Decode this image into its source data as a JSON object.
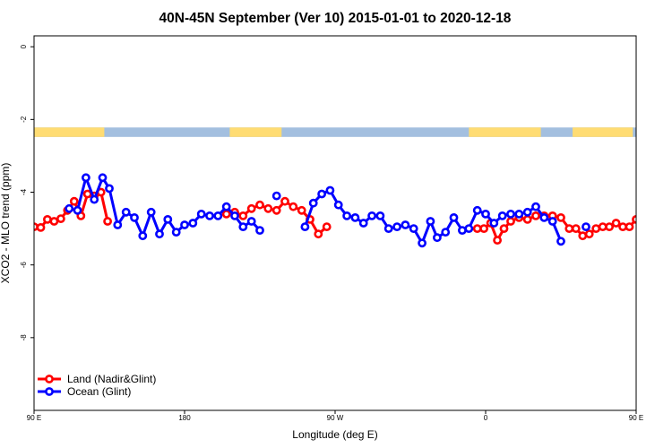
{
  "chart_data": {
    "type": "line",
    "title": "40N-45N September (Ver 10)   2015-01-01 to 2020-12-18",
    "xlabel": "Longitude (deg E)",
    "ylabel": "XCO2 - MLO trend (ppm)",
    "xlim": [
      90,
      450
    ],
    "ylim": [
      -10,
      0.3
    ],
    "x_ticks": [
      {
        "value": 90,
        "label": "90 E"
      },
      {
        "value": 180,
        "label": "180"
      },
      {
        "value": 270,
        "label": "90 W"
      },
      {
        "value": 360,
        "label": "0"
      },
      {
        "value": 450,
        "label": "90 E"
      },
      {
        "value": 540,
        "label": "180"
      }
    ],
    "y_ticks": [
      {
        "value": 0,
        "label": "0"
      },
      {
        "value": -2,
        "label": "-2"
      },
      {
        "value": -4,
        "label": "-4"
      },
      {
        "value": -6,
        "label": "-6"
      },
      {
        "value": -8,
        "label": "-8"
      }
    ],
    "grid": false,
    "legend_position": "bottom-left",
    "surface_strip": {
      "y_range": [
        -2.22,
        -2.48
      ],
      "land_color": "#ffdc73",
      "ocean_color": "#a3bfdf",
      "land_ranges": [
        [
          90,
          132
        ],
        [
          207,
          238
        ],
        [
          350,
          393
        ],
        [
          412,
          448
        ],
        [
          450,
          492
        ]
      ]
    },
    "series": [
      {
        "name": "Land (Nadir&Glint)",
        "color": "#ff0000",
        "points": [
          [
            90,
            -4.95
          ],
          [
            94,
            -4.97
          ],
          [
            98,
            -4.75
          ],
          [
            102,
            -4.8
          ],
          [
            106,
            -4.73
          ],
          [
            110,
            -4.5
          ],
          [
            114,
            -4.25
          ],
          [
            118,
            -4.65
          ],
          [
            122,
            -4.05
          ],
          [
            126,
            -4.1
          ],
          [
            130,
            -4.0
          ],
          [
            134,
            -4.8
          ],
          null,
          [
            205,
            -4.6
          ],
          [
            210,
            -4.55
          ],
          [
            215,
            -4.65
          ],
          [
            220,
            -4.45
          ],
          [
            225,
            -4.35
          ],
          [
            230,
            -4.45
          ],
          [
            235,
            -4.5
          ],
          [
            240,
            -4.25
          ],
          [
            245,
            -4.4
          ],
          [
            250,
            -4.5
          ],
          [
            255,
            -4.75
          ],
          [
            260,
            -5.15
          ],
          [
            265,
            -4.95
          ],
          null,
          [
            355,
            -5.0
          ],
          [
            359,
            -5.0
          ],
          [
            363,
            -4.85
          ],
          [
            367,
            -5.32
          ],
          [
            371,
            -5.0
          ],
          [
            375,
            -4.8
          ],
          [
            380,
            -4.7
          ],
          [
            385,
            -4.75
          ],
          [
            390,
            -4.65
          ],
          [
            395,
            -4.65
          ],
          [
            400,
            -4.65
          ],
          [
            405,
            -4.7
          ],
          [
            410,
            -5.0
          ],
          [
            414,
            -5.0
          ],
          [
            418,
            -5.2
          ],
          [
            422,
            -5.15
          ],
          [
            426,
            -5.0
          ],
          [
            430,
            -4.95
          ],
          [
            434,
            -4.95
          ],
          [
            438,
            -4.85
          ],
          [
            442,
            -4.95
          ],
          [
            446,
            -4.95
          ],
          [
            450,
            -4.75
          ],
          [
            454,
            -4.8
          ],
          [
            458,
            -4.7
          ],
          [
            462,
            -4.5
          ],
          [
            466,
            -4.25
          ],
          [
            470,
            -4.65
          ],
          [
            474,
            -4.05
          ],
          [
            478,
            -4.1
          ],
          [
            482,
            -4.0
          ],
          [
            486,
            -4.8
          ]
        ]
      },
      {
        "name": "Ocean (Glint)",
        "color": "#0000ff",
        "points": [
          [
            111,
            -4.45
          ],
          [
            116,
            -4.5
          ],
          [
            121,
            -3.6
          ],
          [
            126,
            -4.2
          ],
          [
            131,
            -3.6
          ],
          [
            135,
            -3.9
          ],
          [
            140,
            -4.9
          ],
          [
            145,
            -4.55
          ],
          [
            150,
            -4.7
          ],
          [
            155,
            -5.2
          ],
          [
            160,
            -4.55
          ],
          [
            165,
            -5.15
          ],
          [
            170,
            -4.75
          ],
          [
            175,
            -5.1
          ],
          [
            180,
            -4.9
          ],
          [
            185,
            -4.85
          ],
          [
            190,
            -4.6
          ],
          [
            195,
            -4.65
          ],
          [
            200,
            -4.65
          ],
          [
            205,
            -4.4
          ],
          [
            210,
            -4.65
          ],
          [
            215,
            -4.95
          ],
          [
            220,
            -4.8
          ],
          [
            225,
            -5.05
          ],
          null,
          [
            235,
            -4.1
          ],
          null,
          [
            252,
            -4.95
          ],
          [
            257,
            -4.3
          ],
          [
            262,
            -4.05
          ],
          [
            267,
            -3.95
          ],
          [
            272,
            -4.35
          ],
          [
            277,
            -4.65
          ],
          [
            282,
            -4.7
          ],
          [
            287,
            -4.85
          ],
          [
            292,
            -4.65
          ],
          [
            297,
            -4.65
          ],
          [
            302,
            -5.0
          ],
          [
            307,
            -4.95
          ],
          [
            312,
            -4.9
          ],
          [
            317,
            -5.0
          ],
          [
            322,
            -5.4
          ],
          [
            327,
            -4.8
          ],
          [
            331,
            -5.25
          ],
          [
            336,
            -5.1
          ],
          [
            341,
            -4.7
          ],
          [
            346,
            -5.05
          ],
          [
            350,
            -5.0
          ],
          [
            355,
            -4.5
          ],
          [
            360,
            -4.6
          ],
          [
            365,
            -4.85
          ],
          [
            370,
            -4.65
          ],
          [
            375,
            -4.6
          ],
          [
            380,
            -4.6
          ],
          [
            385,
            -4.55
          ],
          [
            390,
            -4.4
          ],
          [
            395,
            -4.7
          ],
          [
            400,
            -4.8
          ],
          [
            405,
            -5.35
          ],
          null,
          [
            420,
            -4.95
          ],
          null,
          [
            470,
            -4.45
          ],
          [
            475,
            -4.5
          ],
          [
            480,
            -3.6
          ],
          [
            485,
            -4.2
          ],
          [
            490,
            -3.6
          ],
          [
            494,
            -3.9
          ],
          [
            499,
            -4.9
          ],
          [
            504,
            -4.55
          ],
          [
            509,
            -4.7
          ],
          [
            514,
            -5.2
          ],
          [
            519,
            -4.55
          ],
          [
            524,
            -5.15
          ]
        ]
      }
    ]
  }
}
